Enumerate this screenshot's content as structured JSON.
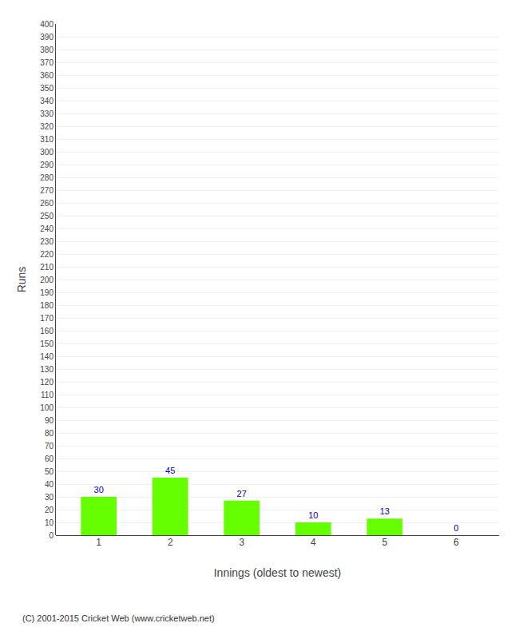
{
  "chart_data": {
    "type": "bar",
    "categories": [
      "1",
      "2",
      "3",
      "4",
      "5",
      "6"
    ],
    "values": [
      30,
      45,
      27,
      10,
      13,
      0
    ],
    "color": "#66ff00",
    "xlabel": "Innings (oldest to newest)",
    "ylabel": "Runs",
    "ylim": [
      0,
      400
    ],
    "yticks": [
      0,
      10,
      20,
      30,
      40,
      50,
      60,
      70,
      80,
      90,
      100,
      110,
      120,
      130,
      140,
      150,
      160,
      170,
      180,
      190,
      200,
      210,
      220,
      230,
      240,
      250,
      260,
      270,
      280,
      290,
      300,
      310,
      320,
      330,
      340,
      350,
      360,
      370,
      380,
      390,
      400
    ],
    "grid": true,
    "data_labels": true,
    "annotations": [
      "(C) 2001-2015 Cricket Web (www.cricketweb.net)"
    ]
  }
}
